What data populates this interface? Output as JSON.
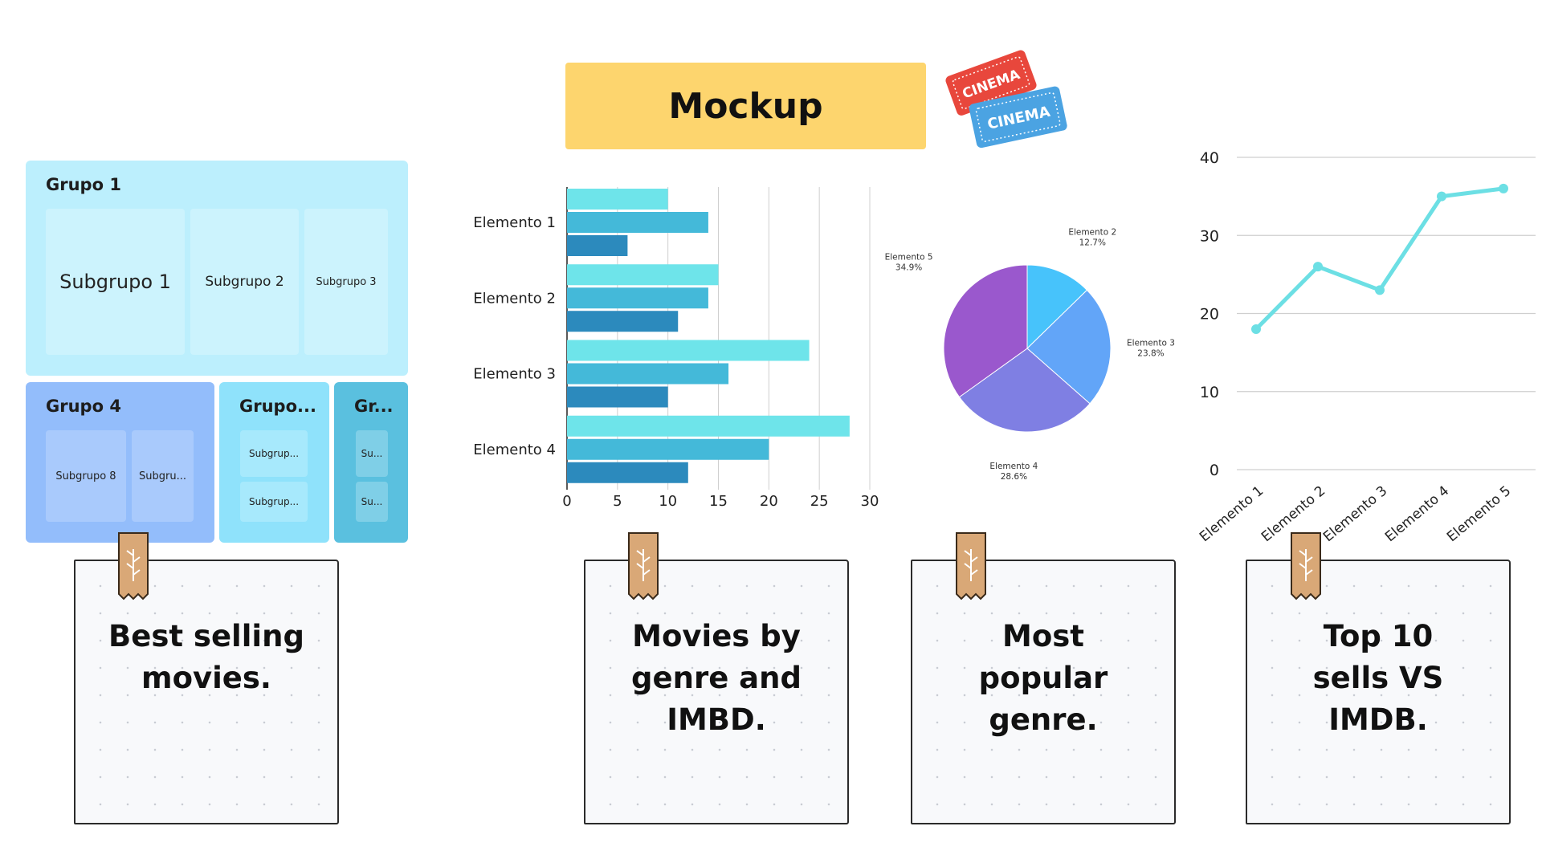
{
  "title": "Mockup",
  "ticket": {
    "top_text": "CINEMA",
    "bottom_text": "CINEMA"
  },
  "treemap": {
    "groups": [
      {
        "label": "Grupo 1",
        "subgroups": [
          "Subgrupo 1",
          "Subgrupo 2",
          "Subgrupo 3"
        ]
      },
      {
        "label": "Grupo 4",
        "subgroups": [
          "Subgrupo 8",
          "Subgru..."
        ]
      },
      {
        "label": "Grupo...",
        "subgroups": [
          "Subgrup...",
          "Subgrup..."
        ]
      },
      {
        "label": "Gr...",
        "subgroups": [
          "Su...",
          "Su..."
        ]
      }
    ],
    "colors": [
      "#bceffd",
      "#93bdfb",
      "#8fe2fb",
      "#5ac0df"
    ]
  },
  "notes": [
    {
      "text": "Best selling movies."
    },
    {
      "text": "Movies by genre and IMBD."
    },
    {
      "text": "Most popular genre."
    },
    {
      "text": "Top 10 sells VS IMDB."
    }
  ],
  "chart_data": [
    {
      "type": "bar",
      "orientation": "horizontal",
      "categories": [
        "Elemento 1",
        "Elemento 2",
        "Elemento 3",
        "Elemento 4"
      ],
      "series": [
        {
          "values": [
            10,
            15,
            24,
            28
          ],
          "color": "#6ee4ea"
        },
        {
          "values": [
            14,
            14,
            16,
            20
          ],
          "color": "#44b9d9"
        },
        {
          "values": [
            6,
            11,
            10,
            12
          ],
          "color": "#2c8abd"
        }
      ],
      "xticks": [
        "0",
        "5",
        "10",
        "15",
        "20",
        "25",
        "30"
      ],
      "xlim": [
        0,
        30
      ],
      "grid": true
    },
    {
      "type": "pie",
      "slices": [
        {
          "label": "Elemento 2",
          "pct_label": "12.7%",
          "value": 12.7,
          "color": "#47c3fb"
        },
        {
          "label": "Elemento 3",
          "pct_label": "23.8%",
          "value": 23.8,
          "color": "#62a5f8"
        },
        {
          "label": "Elemento 4",
          "pct_label": "28.6%",
          "value": 28.6,
          "color": "#7f7fe3"
        },
        {
          "label": "Elemento 5",
          "pct_label": "34.9%",
          "value": 34.9,
          "color": "#9a58cd"
        }
      ]
    },
    {
      "type": "line",
      "categories": [
        "Elemento 1",
        "Elemento 2",
        "Elemento 3",
        "Elemento 4",
        "Elemento 5"
      ],
      "series": [
        {
          "values": [
            18,
            26,
            23,
            35,
            36
          ],
          "color": "#6cdfe4"
        }
      ],
      "yticks": [
        "0",
        "10",
        "20",
        "30",
        "40"
      ],
      "ylim": [
        0,
        40
      ],
      "grid": true
    }
  ]
}
